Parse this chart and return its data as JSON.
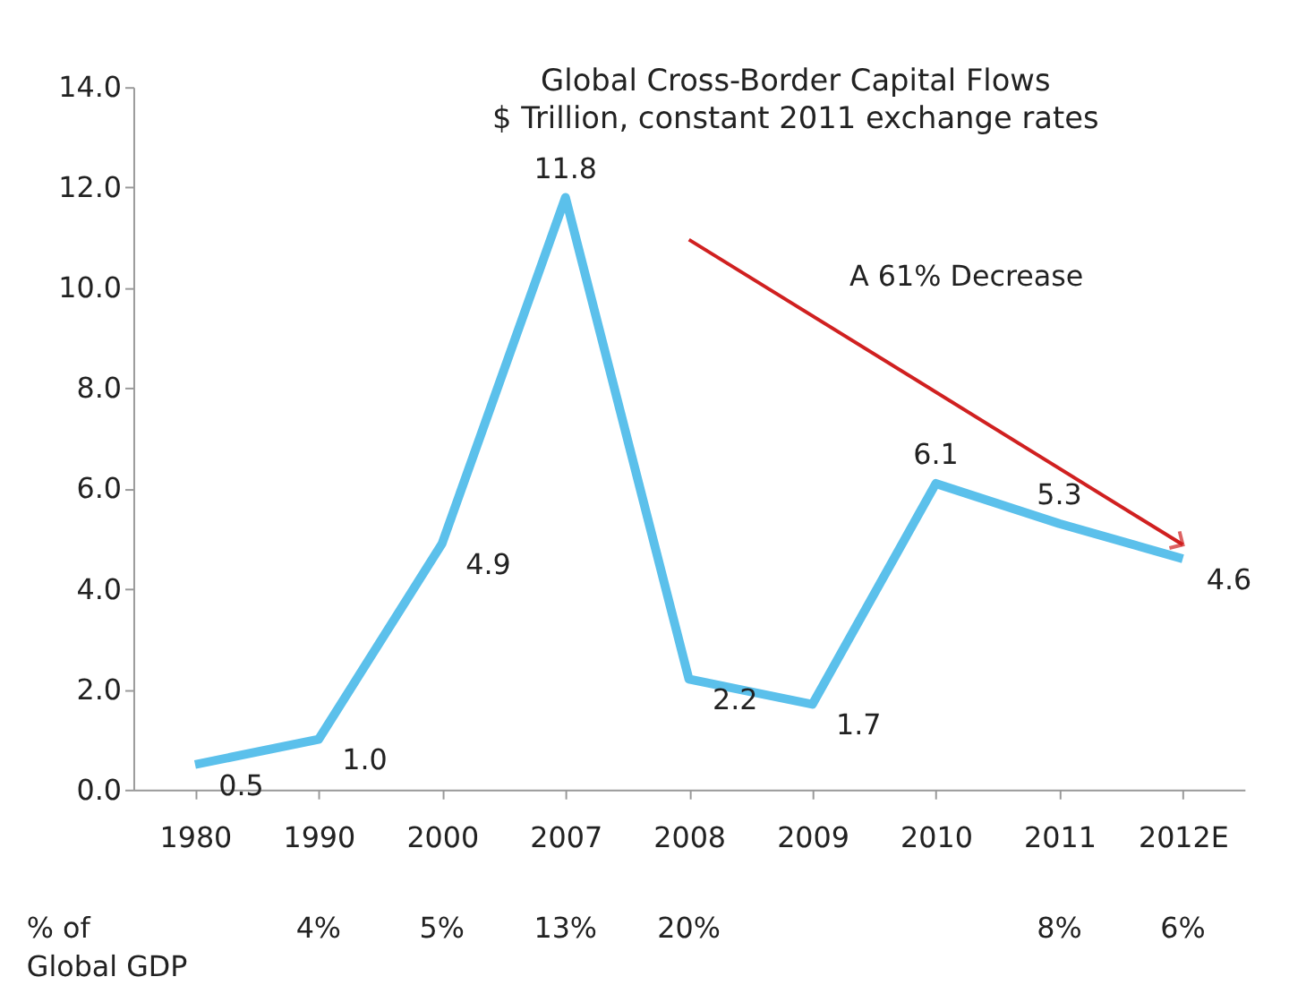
{
  "chart_data": {
    "type": "line",
    "title": "Global Cross-Border Capital Flows",
    "subtitle": "$ Trillion, constant 2011 exchange rates",
    "categories": [
      "1980",
      "1990",
      "2000",
      "2007",
      "2008",
      "2009",
      "2010",
      "2011",
      "2012E"
    ],
    "series": [
      {
        "color": "#5bc0eb",
        "values": [
          0.5,
          1.0,
          4.9,
          11.8,
          2.2,
          1.7,
          6.1,
          5.3,
          4.6
        ],
        "value_labels": [
          "0.5",
          "1.0",
          "4.9",
          "11.8",
          "2.2",
          "1.7",
          "6.1",
          "5.3",
          "4.6"
        ]
      }
    ],
    "ylim": [
      0,
      14
    ],
    "yticks": [
      {
        "value": 0,
        "label": "0.0"
      },
      {
        "value": 2,
        "label": "2.0"
      },
      {
        "value": 4,
        "label": "4.0"
      },
      {
        "value": 6,
        "label": "6.0"
      },
      {
        "value": 8,
        "label": "8.0"
      },
      {
        "value": 10,
        "label": "10.0"
      },
      {
        "value": 12,
        "label": "12.0"
      },
      {
        "value": 14,
        "label": "14.0"
      }
    ],
    "grid": false,
    "legend": false,
    "marker": "none",
    "line_style": "solid",
    "annotations": [
      "A 61% Decrease",
      "% of\nGlobal GDP",
      "4%",
      "5%",
      "13%",
      "20%",
      "8%",
      "6%"
    ]
  }
}
